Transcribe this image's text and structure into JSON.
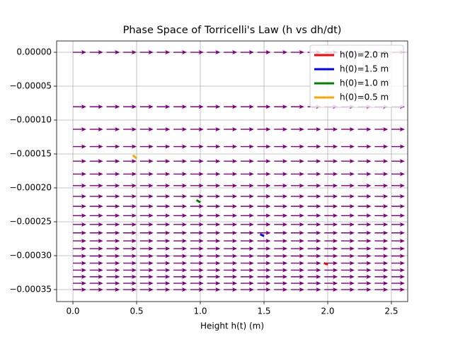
{
  "chart_data": {
    "type": "quiver",
    "title": "Phase Space of Torricelli's Law (h vs dh/dt)",
    "xlabel": "Height h(t) (m)",
    "xlim": [
      -0.128,
      2.628
    ],
    "ylim": [
      1.67e-05,
      -0.0003677
    ],
    "xticks": [
      {
        "value": 0,
        "label": "0.0"
      },
      0.5,
      {
        "value": 1,
        "label": "1.0"
      },
      1.5,
      {
        "value": 2,
        "label": "2.0"
      },
      2.5
    ],
    "yticks": [
      {
        "value": 0,
        "label": "0.00000"
      },
      {
        "value": -5e-05,
        "label": "−0.00005"
      },
      {
        "value": -0.0001,
        "label": "−0.00010"
      },
      {
        "value": -0.00015,
        "label": "−0.00015"
      },
      {
        "value": -0.0002,
        "label": "−0.00020"
      },
      {
        "value": -0.00025,
        "label": "−0.00025"
      },
      {
        "value": -0.0003,
        "label": "−0.00030"
      },
      {
        "value": -0.00035,
        "label": "−0.00035"
      }
    ],
    "grid": true,
    "legend": "upper right",
    "arrow_color": "#800080",
    "grid_x": [
      0,
      0.1316,
      0.2632,
      0.3947,
      0.5263,
      0.6579,
      0.7895,
      0.9211,
      1.0526,
      1.1842,
      1.3158,
      1.4474,
      1.5789,
      1.7105,
      1.8421,
      1.9737,
      2.1053,
      2.2368,
      2.3684,
      2.5
    ],
    "grid_y": [
      0,
      -8.03e-05,
      -0.0001136,
      -0.0001391,
      -0.0001606,
      -0.0001796,
      -0.0001967,
      -0.0002125,
      -0.0002272,
      -0.0002409,
      -0.000254,
      -0.0002664,
      -0.0002782,
      -0.0002896,
      -0.0003005,
      -0.000311,
      -0.0003213,
      -0.0003311,
      -0.0003407,
      -0.0003501
    ],
    "series": [
      {
        "name": "h(0)=2.0 m",
        "color": "#ff0000",
        "x": [
          1.97,
          2.0
        ],
        "values": [
          -0.0003108,
          -0.0003131
        ]
      },
      {
        "name": "h(0)=1.5 m",
        "color": "#0000ff",
        "x": [
          1.47,
          1.5
        ],
        "values": [
          -0.0002684,
          -0.0002711
        ]
      },
      {
        "name": "h(0)=1.0 m",
        "color": "#008000",
        "x": [
          0.97,
          1.0
        ],
        "values": [
          -0.0002181,
          -0.0002214
        ]
      },
      {
        "name": "h(0)=0.5 m",
        "color": "#ffa500",
        "x": [
          0.47,
          0.5
        ],
        "values": [
          -0.0001518,
          -0.0001566
        ]
      }
    ]
  }
}
